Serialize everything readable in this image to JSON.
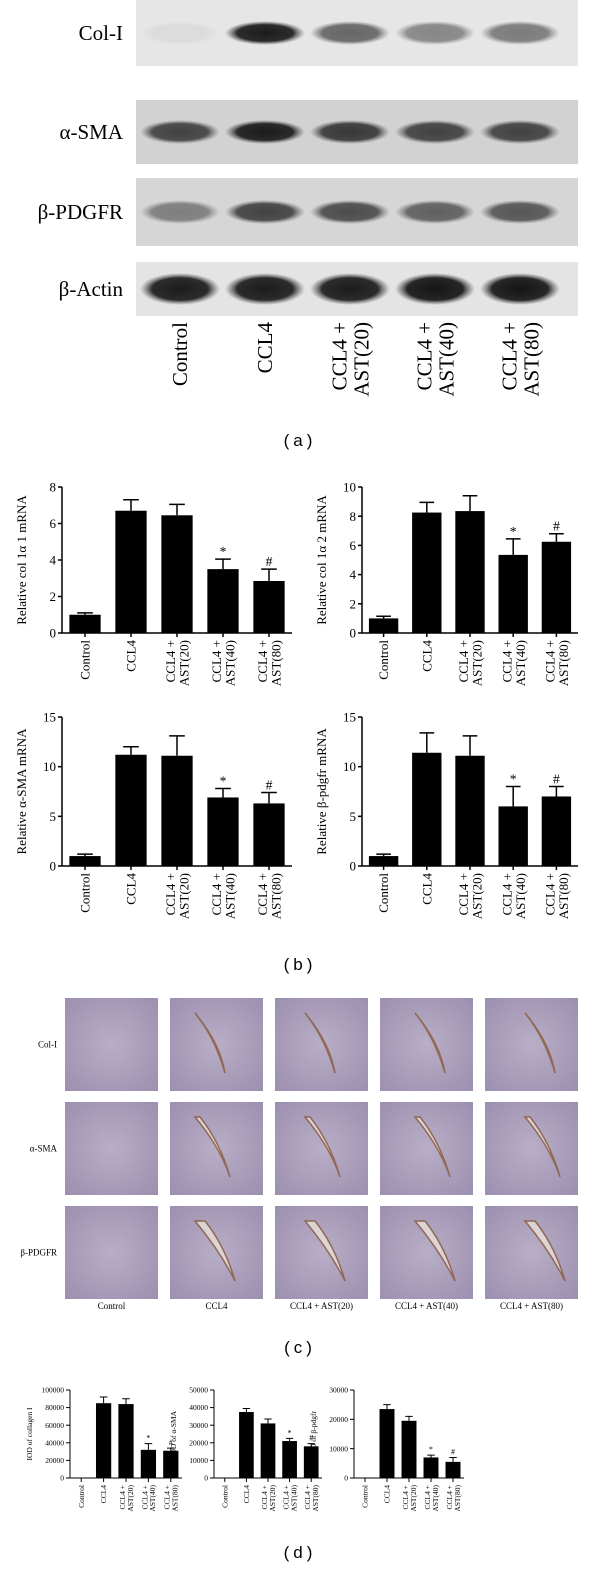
{
  "panel_labels": [
    "(a)",
    "(b)",
    "(c)",
    "(d)"
  ],
  "blot": {
    "rows": [
      "Col-I",
      "α-SMA",
      "β-PDGFR",
      "β-Actin"
    ],
    "columns": [
      "Control",
      "CCL4",
      "CCL4 + AST(20)",
      "CCL4 + AST(40)",
      "CCL4 + AST(80)"
    ]
  },
  "histology": {
    "rows": [
      "Col-I",
      "α-SMA",
      "β-PDGFR"
    ],
    "columns": [
      "Control",
      "CCL4",
      "CCL4 + AST(20)",
      "CCL4 + AST(40)",
      "CCL4 + AST(80)"
    ]
  },
  "chart_data": [
    {
      "type": "bar",
      "ylabel": "Relative col 1α 1 mRNA",
      "color": "#000000",
      "categories": [
        "Control",
        "CCL4",
        "CCL4 + AST(20)",
        "CCL4 + AST(40)",
        "CCL4 + AST(80)"
      ],
      "values": [
        1.0,
        6.7,
        6.45,
        3.5,
        2.85
      ],
      "errors": [
        0.1,
        0.6,
        0.6,
        0.55,
        0.65
      ],
      "markers": [
        null,
        null,
        null,
        "*",
        "#"
      ],
      "ylim": [
        0,
        8
      ],
      "yticks": [
        0,
        2,
        4,
        6,
        8
      ]
    },
    {
      "type": "bar",
      "ylabel": "Relative col 1α 2 mRNA",
      "color": "#000000",
      "categories": [
        "Control",
        "CCL4",
        "CCL4 + AST(20)",
        "CCL4 + AST(40)",
        "CCL4 + AST(80)"
      ],
      "values": [
        1.0,
        8.25,
        8.35,
        5.35,
        6.25
      ],
      "errors": [
        0.15,
        0.7,
        1.05,
        1.1,
        0.55
      ],
      "markers": [
        null,
        null,
        null,
        "*",
        "#"
      ],
      "ylim": [
        0,
        10
      ],
      "yticks": [
        0,
        2,
        4,
        6,
        8,
        10
      ]
    },
    {
      "type": "bar",
      "ylabel": "Relative α-SMA mRNA",
      "color": "#000000",
      "categories": [
        "Control",
        "CCL4",
        "CCL4 + AST(20)",
        "CCL4 + AST(40)",
        "CCL4 + AST(80)"
      ],
      "values": [
        1.0,
        11.2,
        11.1,
        6.9,
        6.3
      ],
      "errors": [
        0.2,
        0.8,
        2.0,
        0.9,
        1.1
      ],
      "markers": [
        null,
        null,
        null,
        "*",
        "#"
      ],
      "ylim": [
        0,
        15
      ],
      "yticks": [
        0,
        5,
        10,
        15
      ]
    },
    {
      "type": "bar",
      "ylabel": "Relative β-pdgfr mRNA",
      "color": "#000000",
      "categories": [
        "Control",
        "CCL4",
        "CCL4 + AST(20)",
        "CCL4 + AST(40)",
        "CCL4 + AST(80)"
      ],
      "values": [
        1.0,
        11.4,
        11.1,
        6.0,
        7.0
      ],
      "errors": [
        0.2,
        2.0,
        2.0,
        2.0,
        1.0
      ],
      "markers": [
        null,
        null,
        null,
        "*",
        "#"
      ],
      "ylim": [
        0,
        15
      ],
      "yticks": [
        0,
        5,
        10,
        15
      ]
    },
    {
      "type": "bar",
      "ylabel": "IOD of collagen I",
      "color": "#000000",
      "categories": [
        "Control",
        "CCL4",
        "CCL4 + AST(20)",
        "CCL4 + AST(40)",
        "CCL4 + AST(80)"
      ],
      "values": [
        0,
        85000,
        84000,
        32000,
        31000
      ],
      "errors": [
        0,
        7000,
        6000,
        7000,
        3000
      ],
      "markers": [
        null,
        null,
        null,
        "*",
        "#"
      ],
      "ylim": [
        0,
        100000
      ],
      "yticks": [
        0,
        20000,
        40000,
        60000,
        80000,
        100000
      ]
    },
    {
      "type": "bar",
      "ylabel": "IOD of α-SMA",
      "color": "#000000",
      "categories": [
        "Control",
        "CCL4",
        "CCL4 + AST(20)",
        "CCL4 + AST(40)",
        "CCL4 + AST(80)"
      ],
      "values": [
        0,
        37500,
        31000,
        21000,
        18000
      ],
      "errors": [
        0,
        2000,
        2500,
        1500,
        1500
      ],
      "markers": [
        null,
        null,
        null,
        "*",
        "#"
      ],
      "ylim": [
        0,
        50000
      ],
      "yticks": [
        0,
        10000,
        20000,
        30000,
        40000,
        50000
      ]
    },
    {
      "type": "bar",
      "ylabel": "IOD of β-pdgfr",
      "color": "#000000",
      "categories": [
        "Control",
        "CCL4",
        "CCL4 + AST(20)",
        "CCL4 + AST(40)",
        "CCL4 + AST(80)"
      ],
      "values": [
        0,
        23500,
        19500,
        7000,
        5500
      ],
      "errors": [
        0,
        1500,
        1500,
        800,
        1500
      ],
      "markers": [
        null,
        null,
        null,
        "*",
        "#"
      ],
      "ylim": [
        0,
        30000
      ],
      "yticks": [
        0,
        10000,
        20000,
        30000
      ]
    }
  ]
}
